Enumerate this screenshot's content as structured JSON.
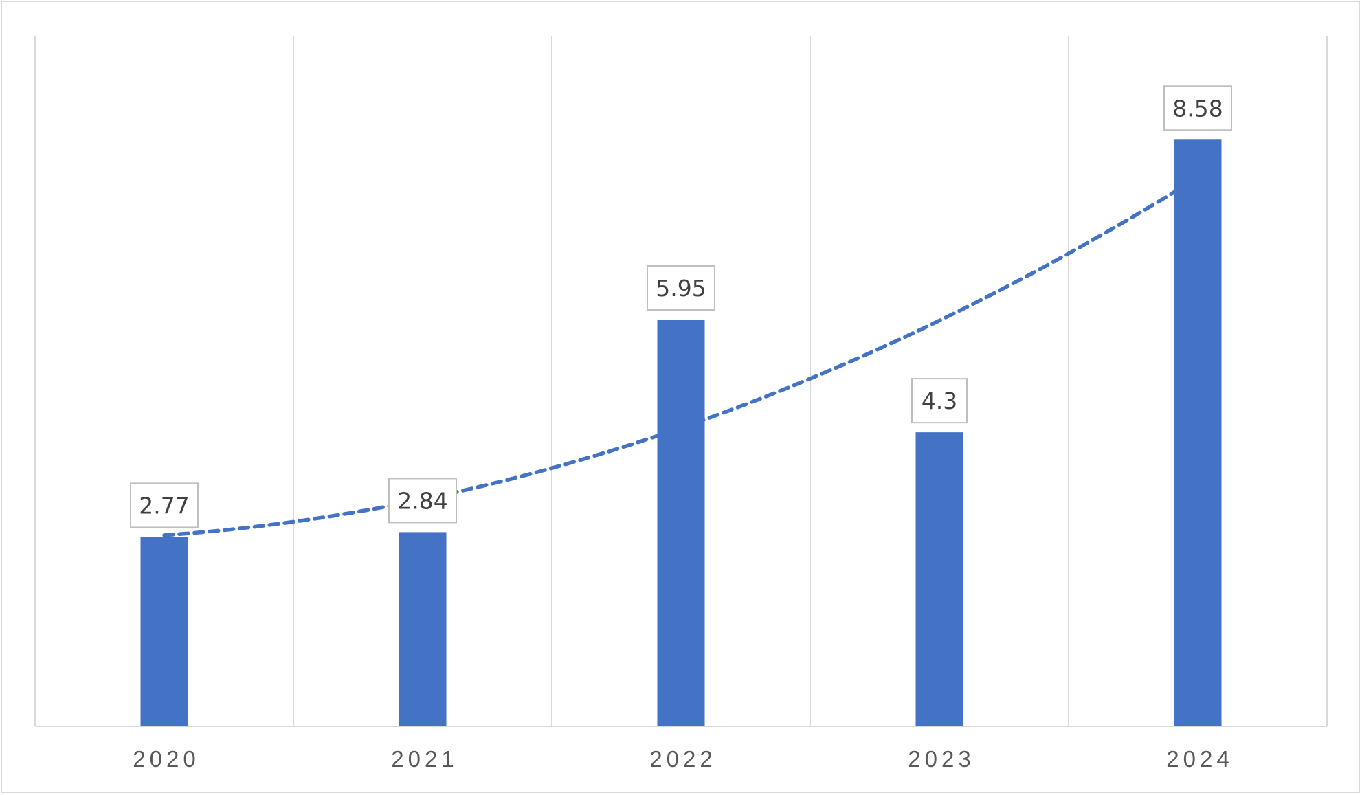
{
  "chart_data": {
    "type": "bar",
    "categories": [
      "2020",
      "2021",
      "2022",
      "2023",
      "2024"
    ],
    "values": [
      2.77,
      2.84,
      5.95,
      4.3,
      8.58
    ],
    "data_labels": [
      "2.77",
      "2.84",
      "5.95",
      "4.3",
      "8.58"
    ],
    "ylim": [
      0,
      10
    ],
    "grid": "vertical",
    "legend": "none",
    "trendline": {
      "type": "polynomial",
      "style": "dashed"
    },
    "colors": {
      "bar": "#4472c4",
      "trendline": "#4472c4",
      "grid": "#d9d9d9",
      "label_border": "#bfbfbf"
    }
  }
}
